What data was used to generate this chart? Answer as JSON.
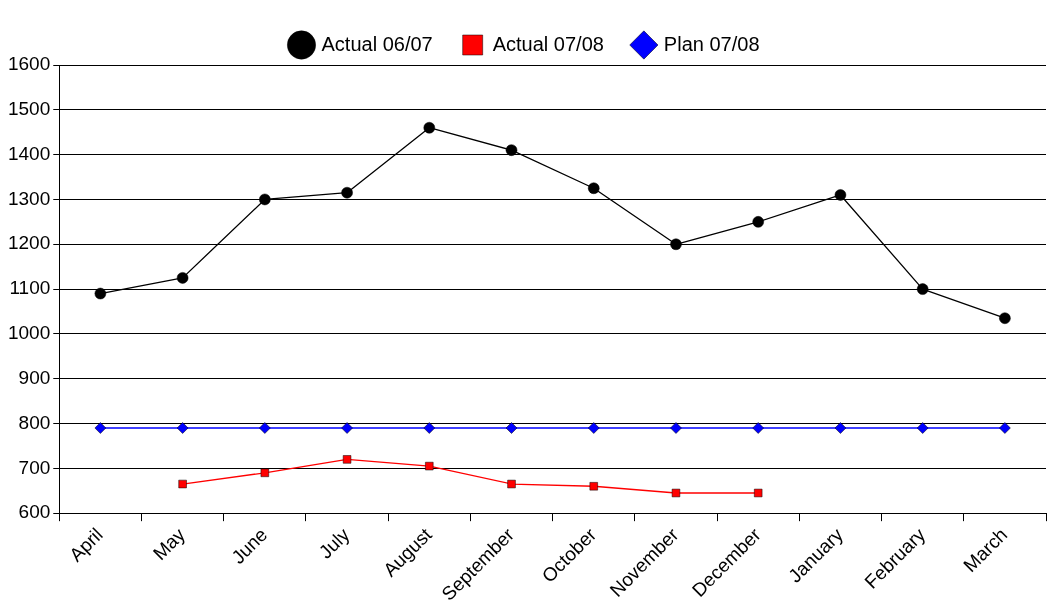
{
  "chart_data": {
    "type": "line",
    "categories": [
      "April",
      "May",
      "June",
      "July",
      "August",
      "September",
      "October",
      "November",
      "December",
      "January",
      "February",
      "March"
    ],
    "series": [
      {
        "name": "Actual 06/07",
        "color": "#000000",
        "marker": "circle",
        "values": [
          1090,
          1125,
          1300,
          1315,
          1460,
          1410,
          1325,
          1200,
          1250,
          1310,
          1100,
          1035
        ]
      },
      {
        "name": "Actual 07/08",
        "color": "#ff0000",
        "marker": "square",
        "values": [
          null,
          665,
          690,
          720,
          705,
          665,
          660,
          645,
          645,
          null,
          null,
          null
        ]
      },
      {
        "name": "Plan 07/08",
        "color": "#0000ff",
        "marker": "diamond",
        "values": [
          790,
          790,
          790,
          790,
          790,
          790,
          790,
          790,
          790,
          790,
          790,
          790
        ]
      }
    ],
    "ylim": [
      600,
      1600
    ],
    "yticks": [
      600,
      700,
      800,
      900,
      1000,
      1100,
      1200,
      1300,
      1400,
      1500,
      1600
    ],
    "grid": "y",
    "legend": "top",
    "line_style": "solid"
  }
}
